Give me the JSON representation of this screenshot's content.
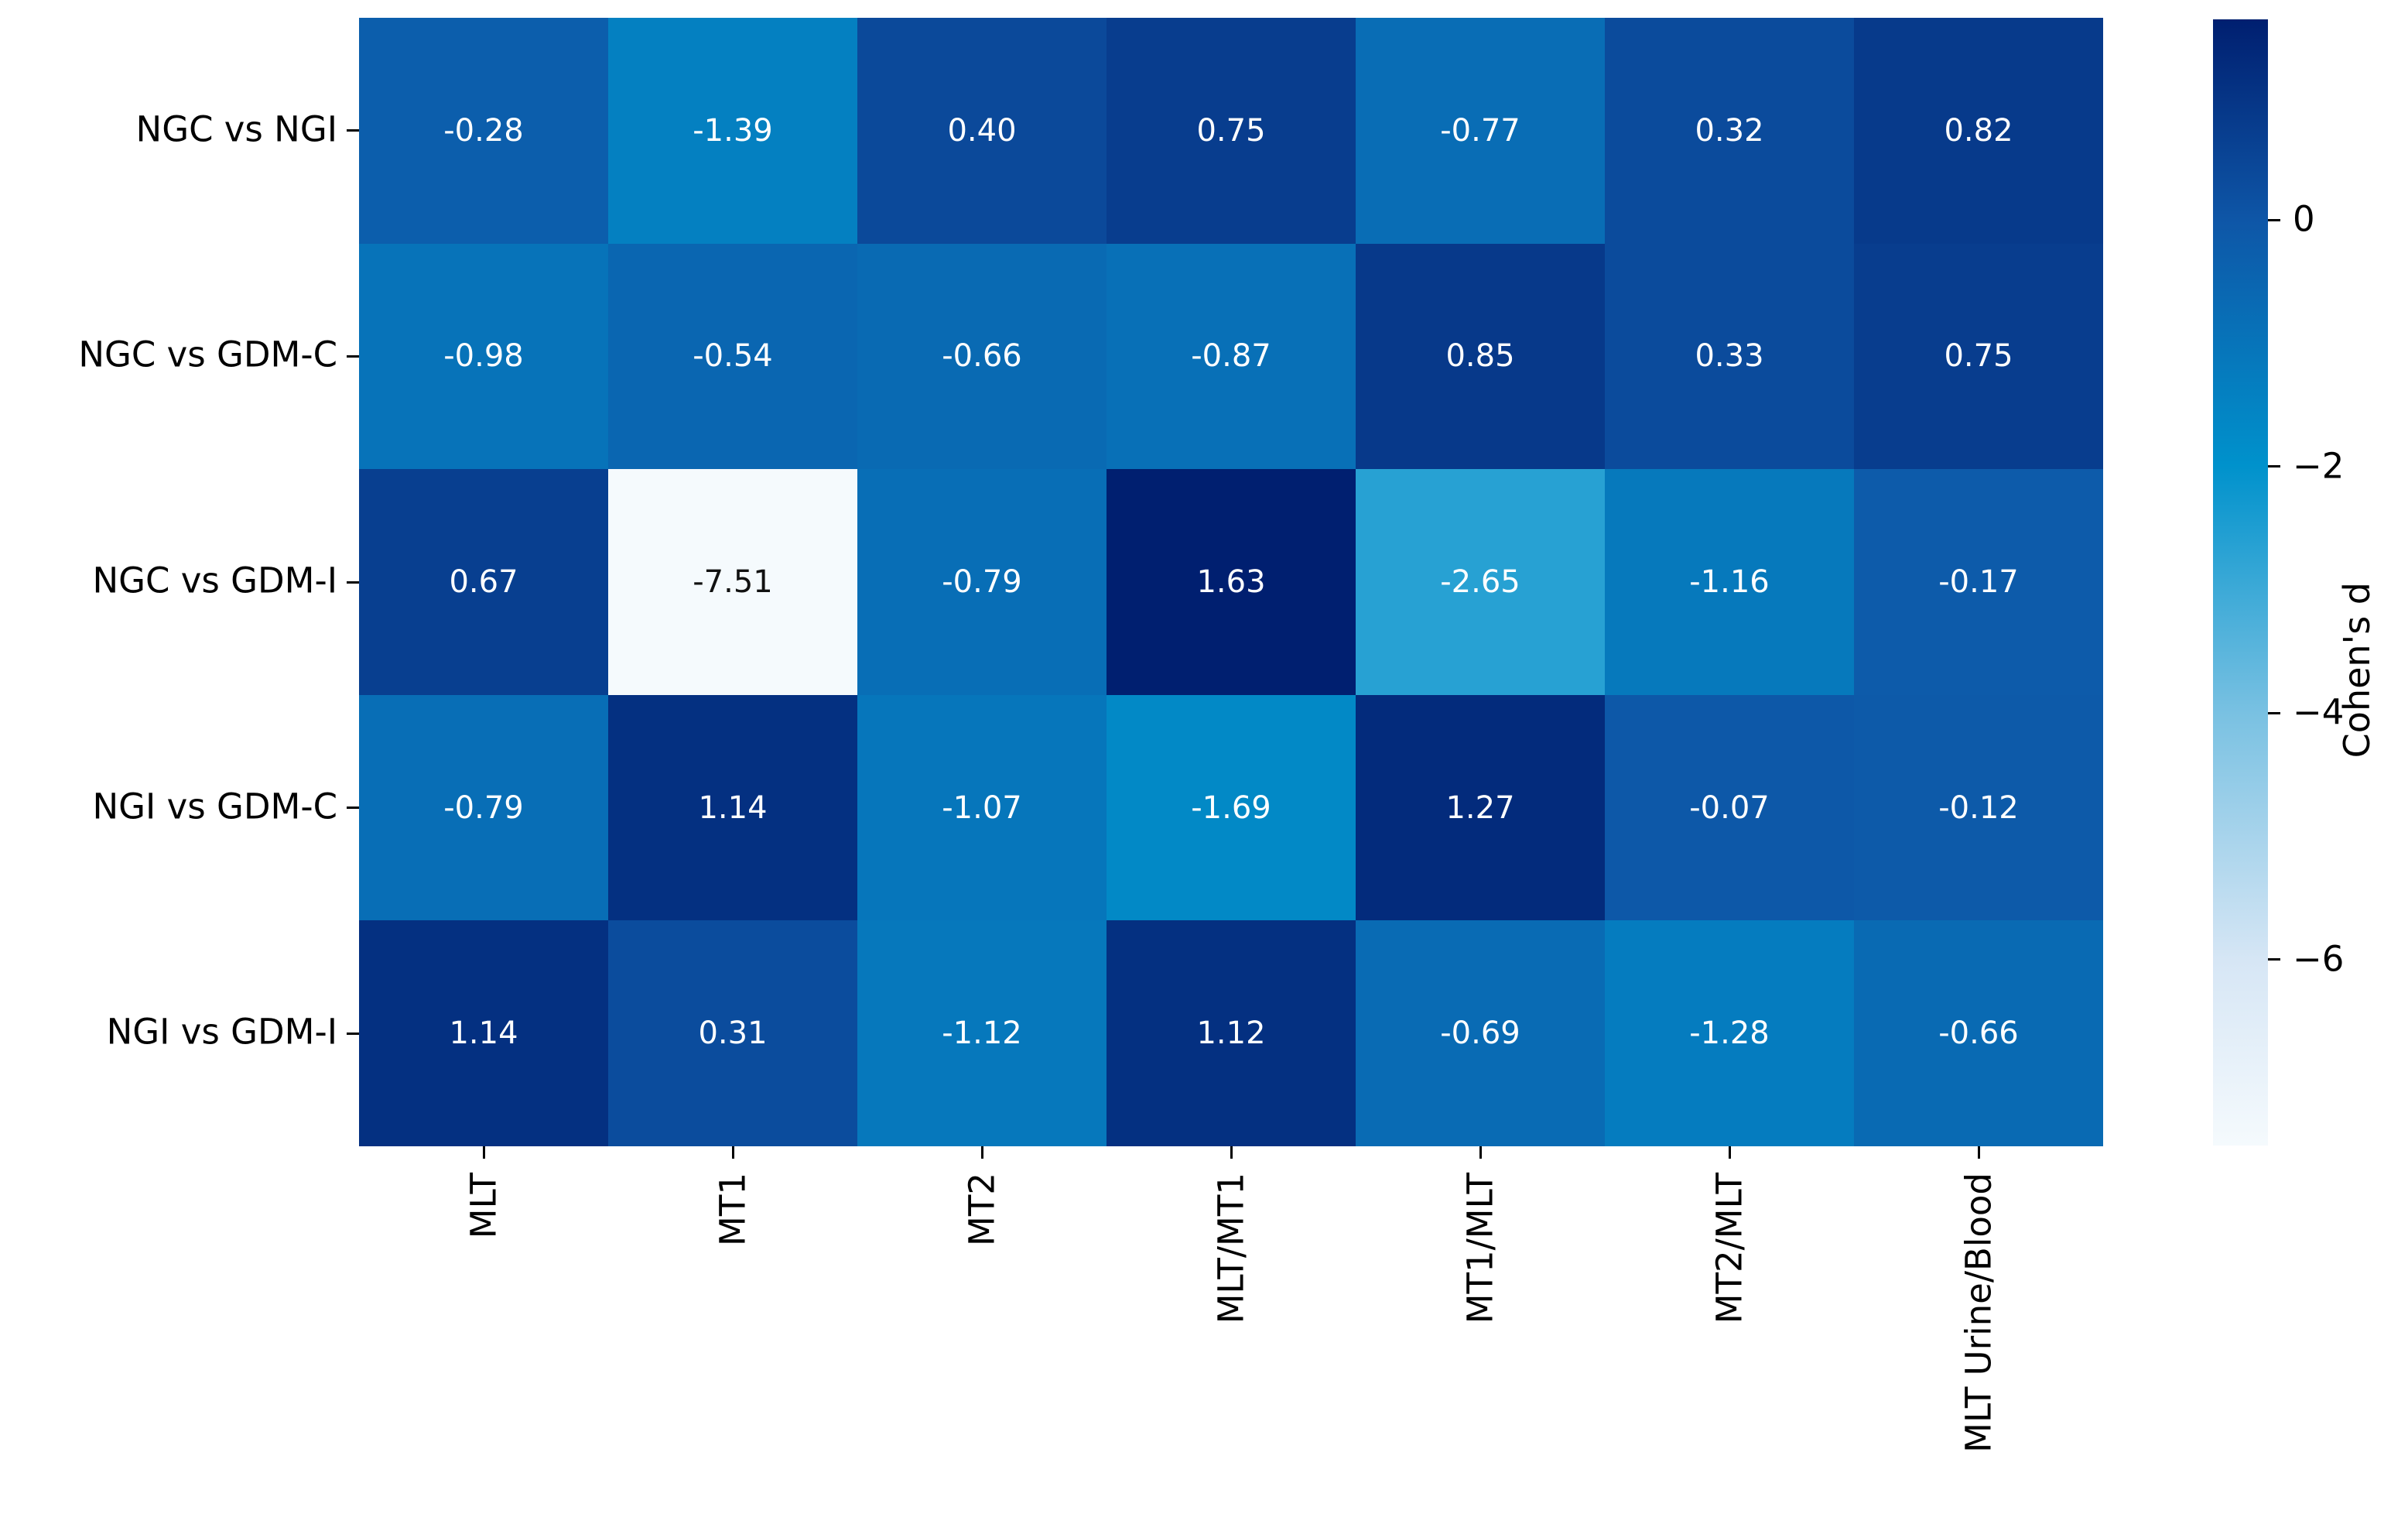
{
  "chart_data": {
    "type": "heatmap",
    "title": "",
    "rows": [
      "NGC vs NGI",
      "NGC vs GDM-C",
      "NGC vs GDM-I",
      "NGI vs GDM-C",
      "NGI vs GDM-I"
    ],
    "columns": [
      "MLT",
      "MT1",
      "MT2",
      "MLT/MT1",
      "MT1/MLT",
      "MT2/MLT",
      "MLT Urine/Blood"
    ],
    "values": [
      [
        -0.28,
        -1.39,
        0.4,
        0.75,
        -0.77,
        0.32,
        0.82
      ],
      [
        -0.98,
        -0.54,
        -0.66,
        -0.87,
        0.85,
        0.33,
        0.75
      ],
      [
        0.67,
        -7.51,
        -0.79,
        1.63,
        -2.65,
        -1.16,
        -0.17
      ],
      [
        -0.79,
        1.14,
        -1.07,
        -1.69,
        1.27,
        -0.07,
        -0.12
      ],
      [
        1.14,
        0.31,
        -1.12,
        1.12,
        -0.69,
        -1.28,
        -0.66
      ]
    ],
    "value_decimals": 2,
    "colorbar": {
      "label": "Cohen's d",
      "vmin": -7.51,
      "vmax": 1.63,
      "ticks": [
        {
          "value": 0,
          "label": "0"
        },
        {
          "value": -2,
          "label": "−2"
        },
        {
          "value": -4,
          "label": "−4"
        },
        {
          "value": -6,
          "label": "−6"
        }
      ]
    },
    "colormap": {
      "name": "Blues",
      "stops": [
        {
          "t": 0.0,
          "color": "#f5fafd"
        },
        {
          "t": 0.165,
          "color": "#d6e6f5"
        },
        {
          "t": 0.384,
          "color": "#79c1e2"
        },
        {
          "t": 0.603,
          "color": "#0092cc"
        },
        {
          "t": 0.822,
          "color": "#0e56a7"
        },
        {
          "t": 1.0,
          "color": "#001f70"
        }
      ]
    },
    "annotation_colors": {
      "on_dark": "#ffffff",
      "on_light": "#111111"
    },
    "axis_text_color": "#000000",
    "background": "#ffffff",
    "legend_position": "right-colorbar",
    "grid": false
  }
}
